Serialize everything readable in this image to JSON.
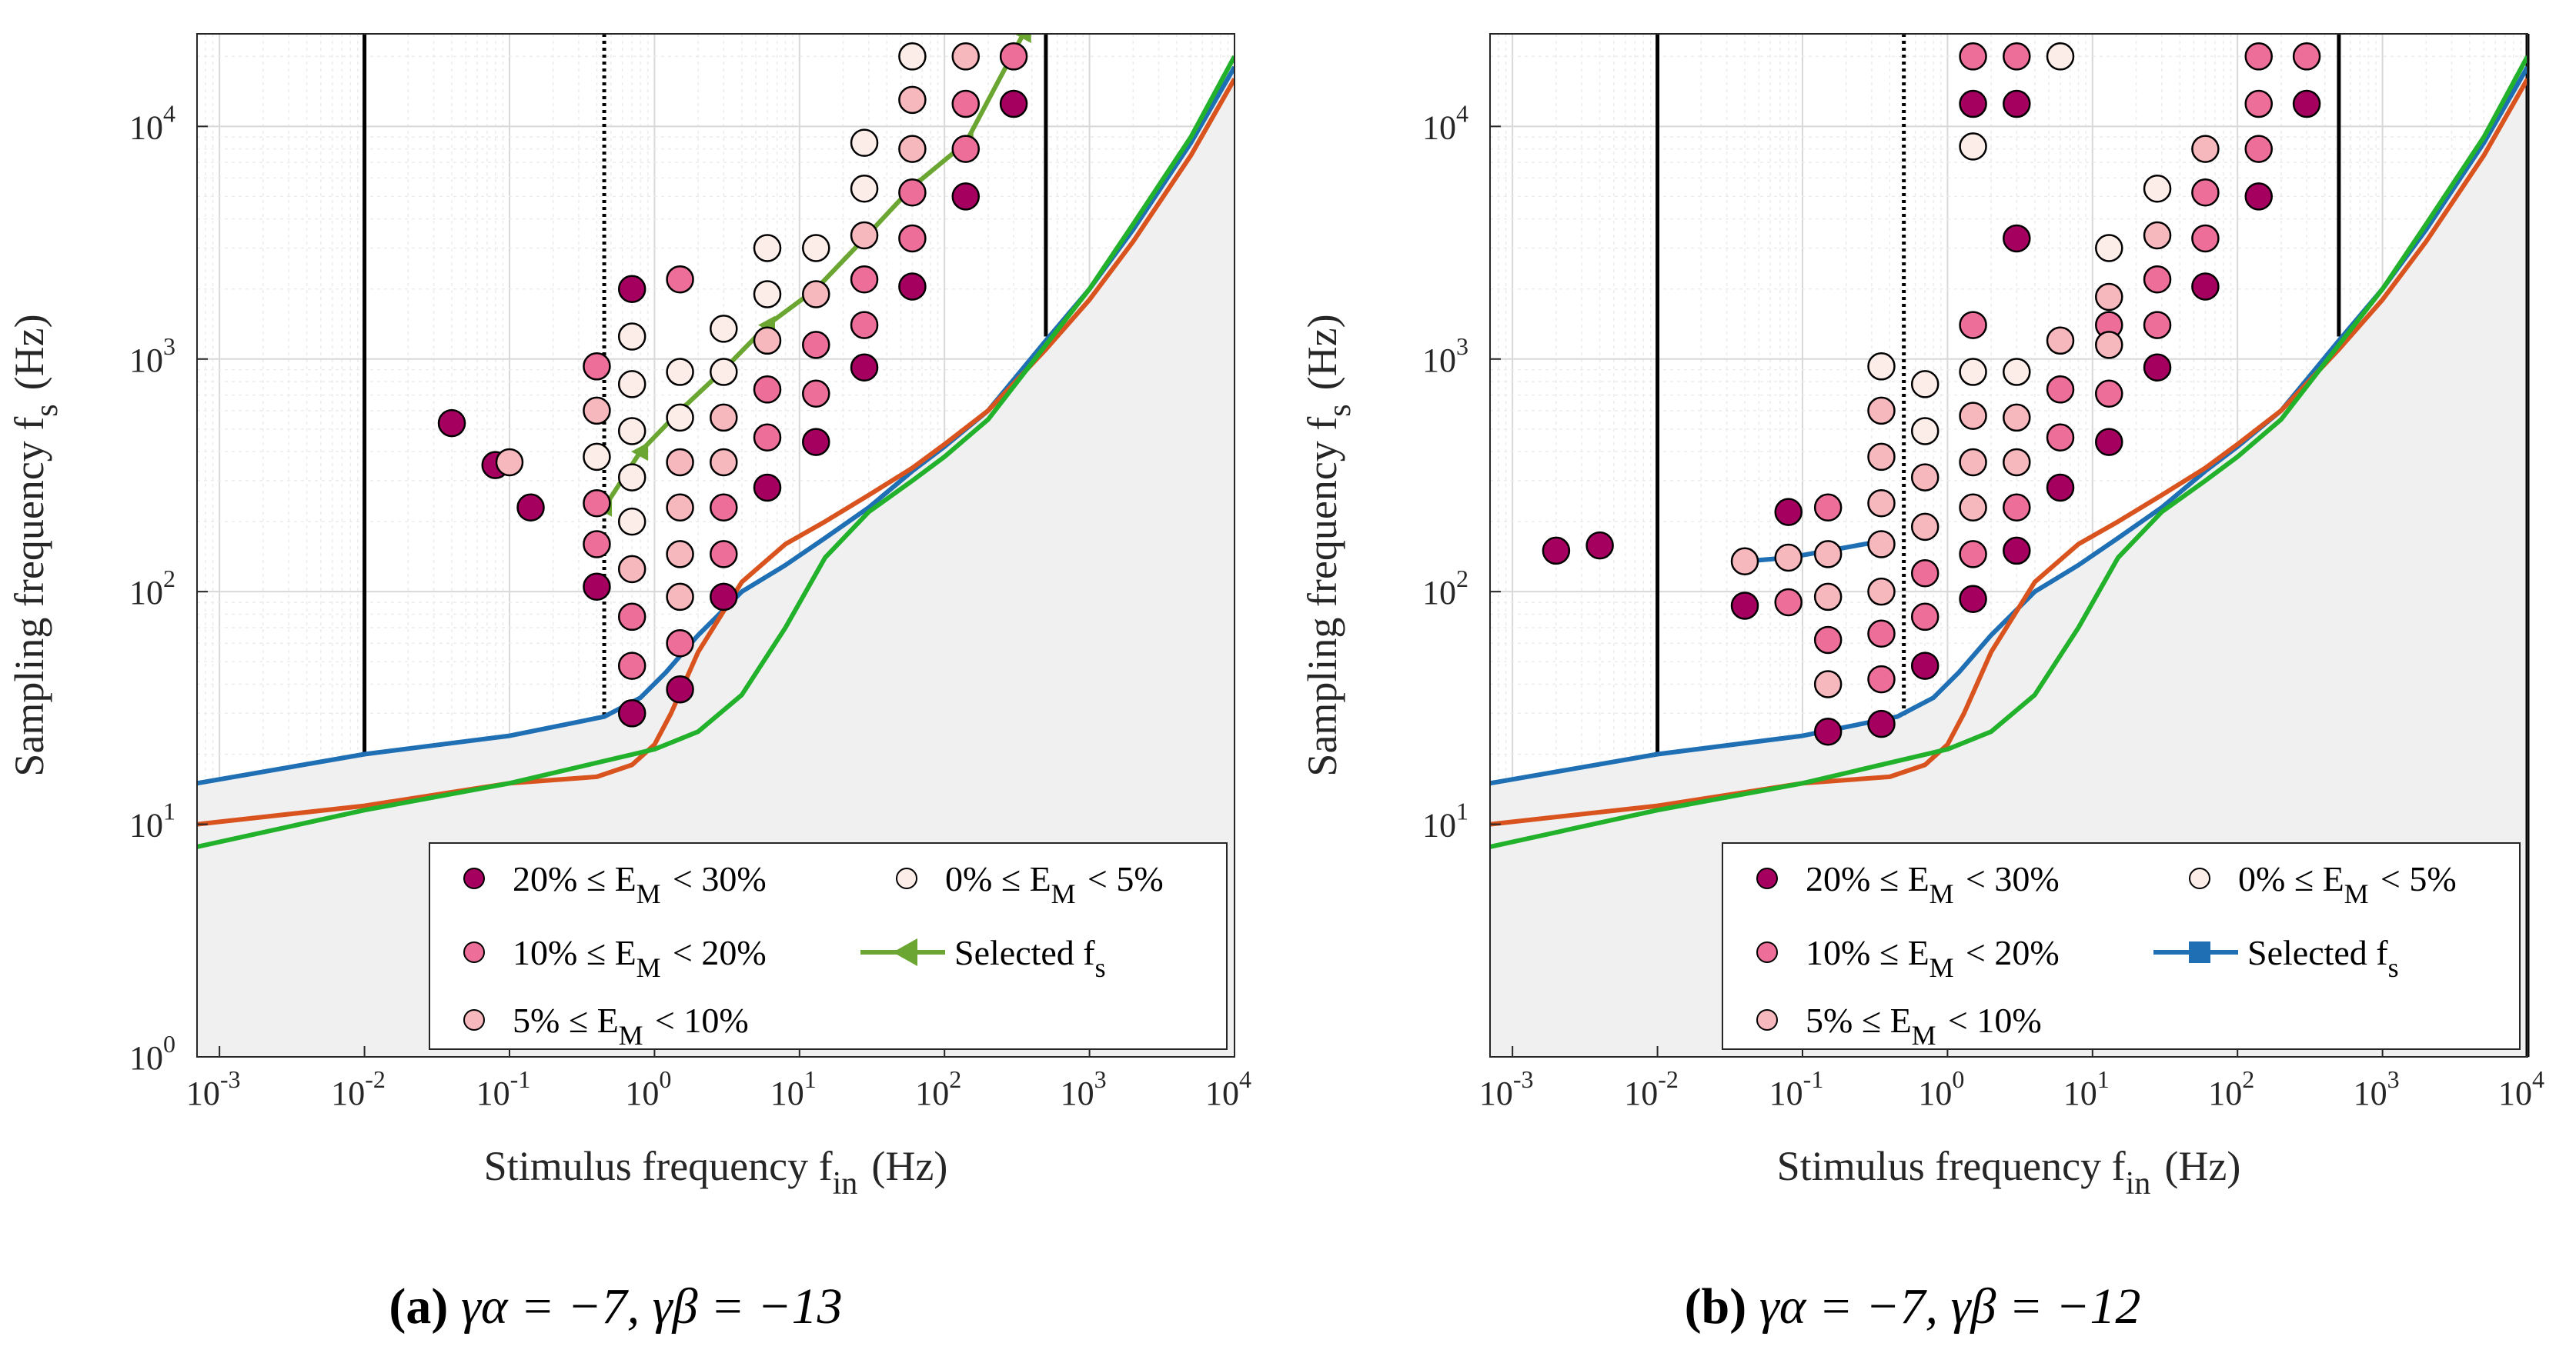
{
  "colors": {
    "c20": "#A5005F",
    "c10": "#EE6E9A",
    "c5": "#F6B8BC",
    "c0": "#FDEDE8",
    "blue": "#1F6FB5",
    "orange": "#D9531E",
    "green": "#22B12B",
    "selected_a": "#6AA631",
    "selected_b": "#1F6FB5",
    "shade": "#F0F0F0"
  },
  "chart_data": [
    {
      "type": "scatter",
      "panel": "a",
      "caption": {
        "label": "(a)",
        "text": "γα = −7, γβ = −13"
      },
      "xlabel": "Stimulus frequency f_in (Hz)",
      "ylabel": "Sampling frequency f_s (Hz)",
      "xscale": "log",
      "yscale": "log",
      "xlim": [
        0.0007,
        10000
      ],
      "ylim": [
        1,
        25000
      ],
      "xticks": [
        {
          "base": "10",
          "exp": "-3"
        },
        {
          "base": "10",
          "exp": "-2"
        },
        {
          "base": "10",
          "exp": "-1"
        },
        {
          "base": "10",
          "exp": "0"
        },
        {
          "base": "10",
          "exp": "1"
        },
        {
          "base": "10",
          "exp": "2"
        },
        {
          "base": "10",
          "exp": "3"
        },
        {
          "base": "10",
          "exp": "4"
        }
      ],
      "yticks": [
        {
          "base": "10",
          "exp": "0"
        },
        {
          "base": "10",
          "exp": "1"
        },
        {
          "base": "10",
          "exp": "2"
        },
        {
          "base": "10",
          "exp": "3"
        },
        {
          "base": "10",
          "exp": "4"
        }
      ],
      "vlines": [
        {
          "x": 0.01,
          "style": "solid",
          "ymin": 20
        },
        {
          "x": 0.45,
          "style": "dotted",
          "ymin": 29
        },
        {
          "x": 500,
          "style": "solid",
          "ymin": 1250
        }
      ],
      "lines": [
        {
          "name": "blue",
          "color": "blue",
          "x": [
            0.0007,
            0.01,
            0.1,
            0.45,
            0.8,
            1.2,
            2,
            4,
            8,
            15,
            30,
            60,
            100,
            200,
            500,
            1000,
            2000,
            5000,
            10000
          ],
          "y": [
            15,
            20,
            24,
            29,
            35,
            45,
            65,
            100,
            130,
            170,
            230,
            330,
            420,
            600,
            1200,
            2000,
            3600,
            8500,
            18000
          ]
        },
        {
          "name": "orange",
          "color": "orange",
          "x": [
            0.0007,
            0.01,
            0.1,
            0.4,
            0.7,
            1.0,
            1.3,
            2,
            4,
            8,
            15,
            30,
            60,
            100,
            200,
            500,
            1000,
            2000,
            5000,
            10000
          ],
          "y": [
            10,
            12,
            15,
            16,
            18,
            22,
            30,
            55,
            110,
            160,
            200,
            260,
            340,
            430,
            600,
            1100,
            1800,
            3200,
            7500,
            16000
          ]
        },
        {
          "name": "green",
          "color": "green",
          "x": [
            0.0007,
            0.01,
            0.1,
            1,
            2,
            4,
            8,
            15,
            30,
            60,
            100,
            200,
            500,
            1000,
            2000,
            5000,
            10000
          ],
          "y": [
            8,
            11.5,
            15,
            21,
            25,
            36,
            70,
            140,
            220,
            300,
            380,
            550,
            1150,
            2000,
            3800,
            9000,
            20000
          ]
        }
      ],
      "series": [
        {
          "name": "20% ≤ E_M < 30%",
          "color": "c20",
          "points": [
            [
              0.04,
              530
            ],
            [
              0.08,
              350
            ],
            [
              0.14,
              230
            ],
            [
              0.4,
              105
            ],
            [
              0.7,
              2000
            ],
            [
              0.7,
              30
            ],
            [
              1.5,
              38
            ],
            [
              3,
              95
            ],
            [
              6,
              280
            ],
            [
              13,
              440
            ],
            [
              28,
              920
            ],
            [
              60,
              2050
            ],
            [
              140,
              5000
            ],
            [
              300,
              12500
            ]
          ]
        },
        {
          "name": "10% ≤ E_M < 20%",
          "color": "c10",
          "points": [
            [
              0.4,
              930
            ],
            [
              0.4,
              240
            ],
            [
              0.4,
              160
            ],
            [
              0.7,
              78
            ],
            [
              0.7,
              48
            ],
            [
              1.5,
              2200
            ],
            [
              1.5,
              60
            ],
            [
              3,
              145
            ],
            [
              3,
              230
            ],
            [
              6,
              460
            ],
            [
              6,
              740
            ],
            [
              13,
              710
            ],
            [
              13,
              1150
            ],
            [
              28,
              1400
            ],
            [
              28,
              2200
            ],
            [
              60,
              3300
            ],
            [
              60,
              5200
            ],
            [
              140,
              8000
            ],
            [
              140,
              12500
            ],
            [
              300,
              20000
            ]
          ]
        },
        {
          "name": "5% ≤ E_M < 10%",
          "color": "c5",
          "points": [
            [
              0.1,
              360
            ],
            [
              0.4,
              600
            ],
            [
              0.7,
              125
            ],
            [
              1.5,
              95
            ],
            [
              1.5,
              145
            ],
            [
              1.5,
              230
            ],
            [
              1.5,
              360
            ],
            [
              3,
              360
            ],
            [
              3,
              560
            ],
            [
              6,
              1200
            ],
            [
              13,
              1900
            ],
            [
              28,
              3400
            ],
            [
              60,
              8000
            ],
            [
              60,
              13000
            ],
            [
              140,
              20000
            ]
          ]
        },
        {
          "name": "0% ≤ E_M < 5%",
          "color": "c0",
          "points": [
            [
              0.4,
              380
            ],
            [
              0.7,
              200
            ],
            [
              0.7,
              310
            ],
            [
              0.7,
              490
            ],
            [
              0.7,
              780
            ],
            [
              0.7,
              1250
            ],
            [
              1.5,
              560
            ],
            [
              1.5,
              880
            ],
            [
              3,
              880
            ],
            [
              3,
              1350
            ],
            [
              6,
              1900
            ],
            [
              6,
              3000
            ],
            [
              13,
              3000
            ],
            [
              28,
              5400
            ],
            [
              28,
              8500
            ],
            [
              60,
              20000
            ]
          ]
        }
      ],
      "selected": {
        "name": "Selected f_s",
        "color": "selected_a",
        "marker": "triangle-left",
        "x": [
          0.45,
          0.8,
          1.5,
          3,
          6,
          13,
          28,
          60,
          140,
          350
        ],
        "y": [
          230,
          400,
          600,
          900,
          1400,
          2000,
          3300,
          5500,
          8500,
          25000
        ]
      },
      "legend": [
        {
          "key": "c20",
          "text": "20% ≤ E_M < 30%"
        },
        {
          "key": "c0",
          "text": "0% ≤ E_M < 5%"
        },
        {
          "key": "c10",
          "text": "10% ≤ E_M < 20%"
        },
        {
          "key": "sel",
          "text": "Selected f_s"
        },
        {
          "key": "c5",
          "text": "5% ≤ E_M < 10%"
        }
      ]
    },
    {
      "type": "scatter",
      "panel": "b",
      "caption": {
        "label": "(b)",
        "text": "γα = −7, γβ = −12"
      },
      "xlabel": "Stimulus frequency f_in (Hz)",
      "ylabel": "Sampling frequency f_s (Hz)",
      "xscale": "log",
      "yscale": "log",
      "xlim": [
        0.0007,
        10000
      ],
      "ylim": [
        1,
        25000
      ],
      "xticks": [
        {
          "base": "10",
          "exp": "-3"
        },
        {
          "base": "10",
          "exp": "-2"
        },
        {
          "base": "10",
          "exp": "-1"
        },
        {
          "base": "10",
          "exp": "0"
        },
        {
          "base": "10",
          "exp": "1"
        },
        {
          "base": "10",
          "exp": "2"
        },
        {
          "base": "10",
          "exp": "3"
        },
        {
          "base": "10",
          "exp": "4"
        }
      ],
      "yticks": [
        {
          "base": "",
          "exp": ""
        },
        {
          "base": "10",
          "exp": "1"
        },
        {
          "base": "10",
          "exp": "2"
        },
        {
          "base": "10",
          "exp": "3"
        },
        {
          "base": "10",
          "exp": "4"
        }
      ],
      "vlines": [
        {
          "x": 0.01,
          "style": "solid",
          "ymin": 20
        },
        {
          "x": 0.5,
          "style": "dotted",
          "ymin": 29
        },
        {
          "x": 500,
          "style": "solid",
          "ymin": 1250
        },
        {
          "x": 10000,
          "style": "solid",
          "ymin": 1
        }
      ],
      "lines": [
        {
          "name": "blue",
          "color": "blue",
          "x": [
            0.0007,
            0.01,
            0.1,
            0.45,
            0.8,
            1.2,
            2,
            4,
            8,
            15,
            30,
            60,
            100,
            200,
            500,
            1000,
            2000,
            5000,
            10000
          ],
          "y": [
            15,
            20,
            24,
            29,
            35,
            45,
            65,
            100,
            130,
            170,
            230,
            330,
            420,
            600,
            1200,
            2000,
            3600,
            8500,
            18000
          ]
        },
        {
          "name": "orange",
          "color": "orange",
          "x": [
            0.0007,
            0.01,
            0.1,
            0.4,
            0.7,
            1.0,
            1.3,
            2,
            4,
            8,
            15,
            30,
            60,
            100,
            200,
            500,
            1000,
            2000,
            5000,
            10000
          ],
          "y": [
            10,
            12,
            15,
            16,
            18,
            22,
            30,
            55,
            110,
            160,
            200,
            260,
            340,
            430,
            600,
            1100,
            1800,
            3200,
            7500,
            16000
          ]
        },
        {
          "name": "green",
          "color": "green",
          "x": [
            0.0007,
            0.01,
            0.1,
            1,
            2,
            4,
            8,
            15,
            30,
            60,
            100,
            200,
            500,
            1000,
            2000,
            5000,
            10000
          ],
          "y": [
            8,
            11.5,
            15,
            21,
            25,
            36,
            70,
            140,
            220,
            300,
            380,
            550,
            1150,
            2000,
            3800,
            9000,
            20000
          ]
        }
      ],
      "series": [
        {
          "name": "20% ≤ E_M < 30%",
          "color": "c20",
          "points": [
            [
              0.002,
              150
            ],
            [
              0.004,
              158
            ],
            [
              0.04,
              87
            ],
            [
              0.08,
              220
            ],
            [
              0.15,
              25
            ],
            [
              0.35,
              27
            ],
            [
              0.7,
              48
            ],
            [
              1.5,
              93
            ],
            [
              1.5,
              12500
            ],
            [
              3,
              3300
            ],
            [
              3,
              150
            ],
            [
              3,
              12500
            ],
            [
              6,
              280
            ],
            [
              13,
              440
            ],
            [
              28,
              920
            ],
            [
              60,
              2050
            ],
            [
              140,
              5000
            ],
            [
              300,
              12500
            ]
          ]
        },
        {
          "name": "10% ≤ E_M < 20%",
          "color": "c10",
          "points": [
            [
              0.08,
              90
            ],
            [
              0.15,
              230
            ],
            [
              0.15,
              62
            ],
            [
              0.35,
              66
            ],
            [
              0.35,
              42
            ],
            [
              0.7,
              78
            ],
            [
              0.7,
              120
            ],
            [
              1.5,
              145
            ],
            [
              1.5,
              1400
            ],
            [
              1.5,
              20000
            ],
            [
              3,
              20000
            ],
            [
              3,
              230
            ],
            [
              6,
              460
            ],
            [
              6,
              740
            ],
            [
              13,
              710
            ],
            [
              13,
              1400
            ],
            [
              28,
              1400
            ],
            [
              28,
              2200
            ],
            [
              60,
              3300
            ],
            [
              60,
              5200
            ],
            [
              140,
              8000
            ],
            [
              140,
              12500
            ],
            [
              140,
              20000
            ],
            [
              300,
              20000
            ]
          ]
        },
        {
          "name": "5% ≤ E_M < 10%",
          "color": "c5",
          "points": [
            [
              0.04,
              135
            ],
            [
              0.08,
              140
            ],
            [
              0.15,
              145
            ],
            [
              0.15,
              95
            ],
            [
              0.15,
              40
            ],
            [
              0.35,
              240
            ],
            [
              0.35,
              380
            ],
            [
              0.35,
              600
            ],
            [
              0.35,
              160
            ],
            [
              0.35,
              100
            ],
            [
              0.7,
              310
            ],
            [
              0.7,
              190
            ],
            [
              1.5,
              230
            ],
            [
              1.5,
              360
            ],
            [
              1.5,
              570
            ],
            [
              3,
              360
            ],
            [
              3,
              560
            ],
            [
              6,
              1200
            ],
            [
              13,
              1150
            ],
            [
              13,
              1850
            ],
            [
              28,
              3400
            ],
            [
              60,
              8000
            ]
          ]
        },
        {
          "name": "0% ≤ E_M < 5%",
          "color": "c0",
          "points": [
            [
              0.35,
              930
            ],
            [
              0.7,
              490
            ],
            [
              0.7,
              780
            ],
            [
              1.5,
              880
            ],
            [
              1.5,
              8200
            ],
            [
              3,
              880
            ],
            [
              6,
              20000
            ],
            [
              13,
              3000
            ],
            [
              28,
              5400
            ]
          ]
        }
      ],
      "selected": {
        "name": "Selected f_s",
        "color": "selected_b",
        "marker": "square",
        "x": [
          0.04,
          0.08,
          0.15,
          0.35
        ],
        "y": [
          135,
          140,
          150,
          165
        ]
      },
      "legend": [
        {
          "key": "c20",
          "text": "20% ≤ E_M < 30%"
        },
        {
          "key": "c0",
          "text": "0% ≤ E_M < 5%"
        },
        {
          "key": "c10",
          "text": "10% ≤ E_M < 20%"
        },
        {
          "key": "sel",
          "text": "Selected f_s"
        },
        {
          "key": "c5",
          "text": "5% ≤ E_M < 10%"
        }
      ]
    }
  ]
}
